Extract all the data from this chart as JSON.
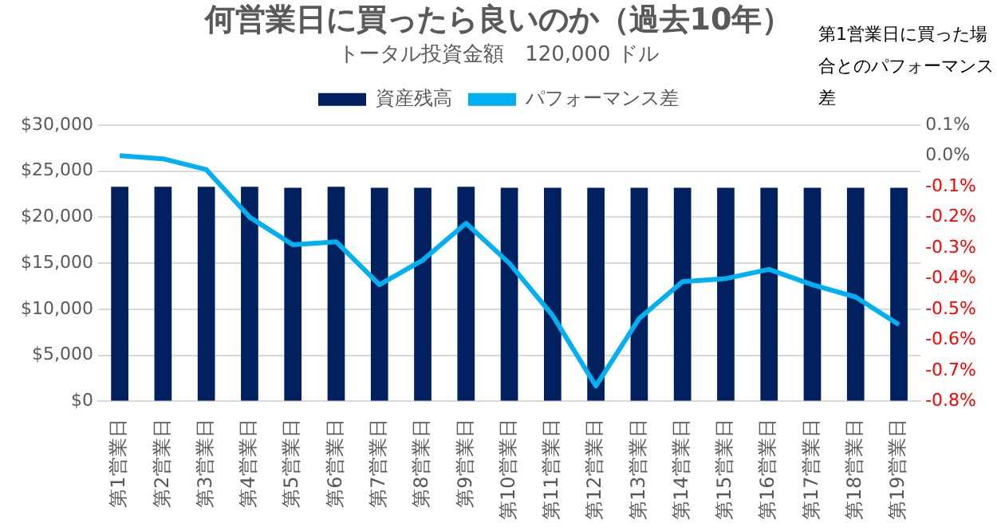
{
  "chart_data": {
    "type": "bar",
    "title": "何営業日に買ったら良いのか（過去10年）",
    "subtitle": "トータル投資金額　120,000 ドル",
    "y2label": "第1営業日に買った場合とのパフォーマンス差",
    "categories": [
      "第1営業日",
      "第2営業日",
      "第3営業日",
      "第4営業日",
      "第5営業日",
      "第6営業日",
      "第7営業日",
      "第8営業日",
      "第9営業日",
      "第10営業日",
      "第11営業日",
      "第12営業日",
      "第13営業日",
      "第14営業日",
      "第15営業日",
      "第16営業日",
      "第17営業日",
      "第18営業日",
      "第19営業日"
    ],
    "series": [
      {
        "name": "資産残高",
        "color": "#002060",
        "values": [
          23300,
          23300,
          23300,
          23300,
          23200,
          23300,
          23200,
          23200,
          23300,
          23200,
          23200,
          23200,
          23200,
          23200,
          23200,
          23200,
          23200,
          23200,
          23200
        ]
      },
      {
        "name": "パフォーマンス差",
        "type": "line",
        "axis": "y2",
        "color": "#00b0f0",
        "values": [
          0.0,
          -0.01,
          -0.045,
          -0.2,
          -0.29,
          -0.28,
          -0.42,
          -0.34,
          -0.22,
          -0.35,
          -0.52,
          -0.75,
          -0.53,
          -0.41,
          -0.4,
          -0.37,
          -0.42,
          -0.46,
          -0.55
        ]
      }
    ],
    "ylim": [
      0,
      30000
    ],
    "yticks": [
      {
        "value": 0,
        "label": "$0"
      },
      {
        "value": 5000,
        "label": "$5,000"
      },
      {
        "value": 10000,
        "label": "$10,000"
      },
      {
        "value": 15000,
        "label": "$15,000"
      },
      {
        "value": 20000,
        "label": "$20,000"
      },
      {
        "value": 25000,
        "label": "$25,000"
      },
      {
        "value": 30000,
        "label": "$30,000"
      }
    ],
    "y2lim": [
      -0.8,
      0.1
    ],
    "y2ticks": [
      {
        "value": -0.8,
        "label": "-0.8%"
      },
      {
        "value": -0.7,
        "label": "-0.7%"
      },
      {
        "value": -0.6,
        "label": "-0.6%"
      },
      {
        "value": -0.5,
        "label": "-0.5%"
      },
      {
        "value": -0.4,
        "label": "-0.4%"
      },
      {
        "value": -0.3,
        "label": "-0.3%"
      },
      {
        "value": -0.2,
        "label": "-0.2%"
      },
      {
        "value": -0.1,
        "label": "-0.1%"
      },
      {
        "value": 0,
        "label": "0.0%"
      },
      {
        "value": 0.1,
        "label": "0.1%"
      }
    ],
    "grid": "y",
    "legend": "top",
    "marker": "none",
    "line_style": "solid"
  }
}
